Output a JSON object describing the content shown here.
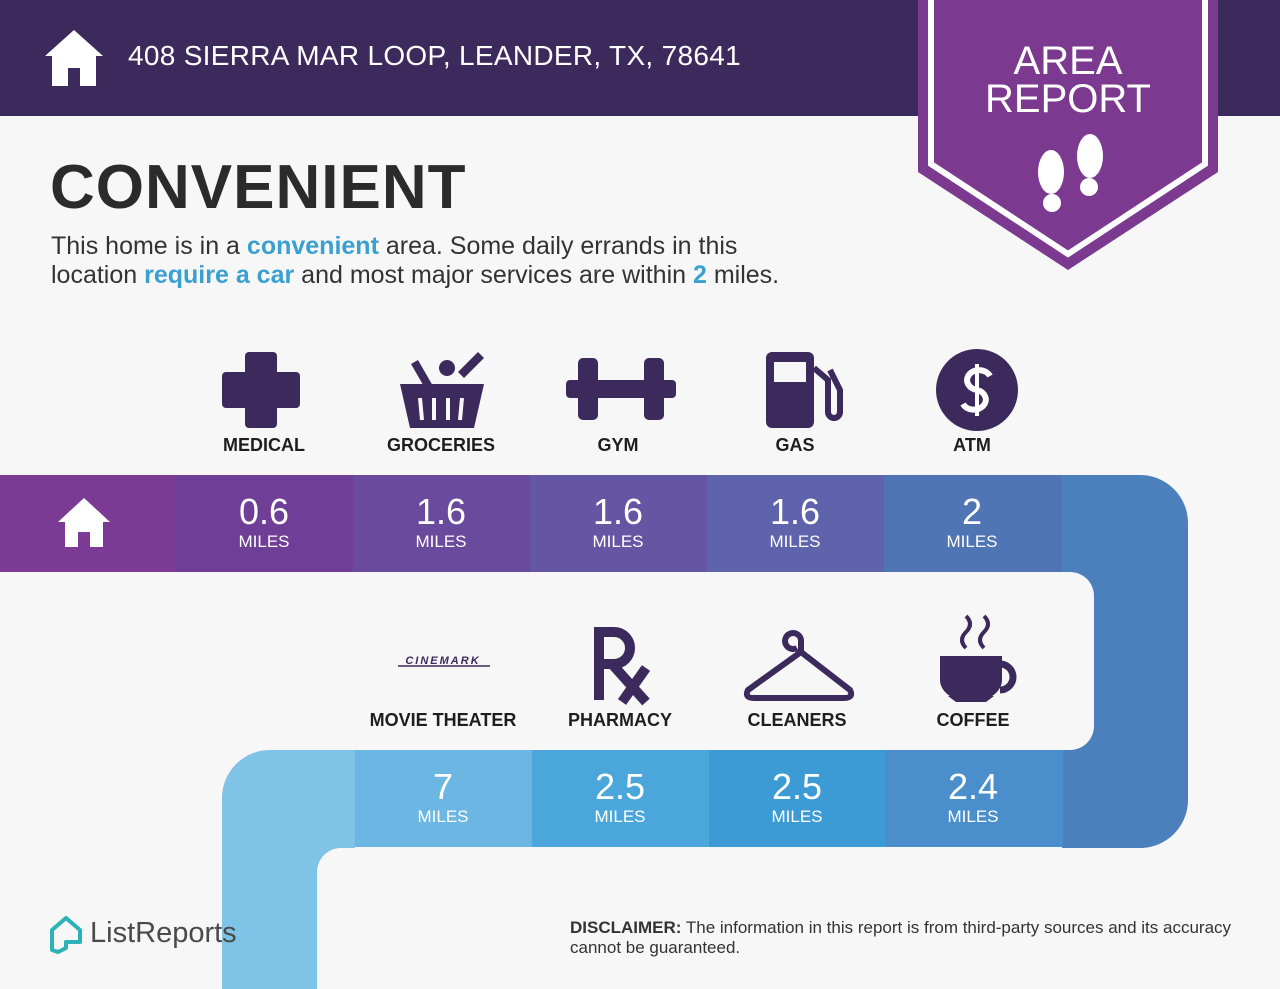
{
  "header": {
    "address": "408 SIERRA MAR LOOP, LEANDER, TX, 78641",
    "badge": [
      "AREA",
      "REPORT"
    ]
  },
  "title": "CONVENIENT",
  "description": {
    "lines": [
      [
        {
          "text": "This home is in a "
        },
        {
          "text": "convenient",
          "em": true
        },
        {
          "text": " area. Some daily errands in this"
        }
      ],
      [
        {
          "text": "location "
        },
        {
          "text": "require a car",
          "em": true
        },
        {
          "text": " and most major services are within "
        },
        {
          "text": "2",
          "em": true
        },
        {
          "text": " miles."
        }
      ]
    ]
  },
  "services": {
    "top": [
      {
        "label": "MEDICAL",
        "distance": 0.6,
        "unit": "MILES"
      },
      {
        "label": "GROCERIES",
        "distance": 1.6,
        "unit": "MILES"
      },
      {
        "label": "GYM",
        "distance": 1.6,
        "unit": "MILES"
      },
      {
        "label": "GAS",
        "distance": 1.6,
        "unit": "MILES"
      },
      {
        "label": "ATM",
        "distance": 2,
        "unit": "MILES"
      }
    ],
    "bottom": [
      {
        "label": "MOVIE THEATER",
        "logo": "CINEMARK",
        "distance": 7,
        "unit": "MILES"
      },
      {
        "label": "PHARMACY",
        "distance": 2.5,
        "unit": "MILES"
      },
      {
        "label": "CLEANERS",
        "distance": 2.5,
        "unit": "MILES"
      },
      {
        "label": "COFFEE",
        "distance": 2.4,
        "unit": "MILES"
      }
    ]
  },
  "footer": {
    "brand": "ListReports",
    "disclaimer": {
      "label": "DISCLAIMER:",
      "text": "The information in this report is from third-party sources and its accuracy cannot be guaranteed."
    }
  }
}
